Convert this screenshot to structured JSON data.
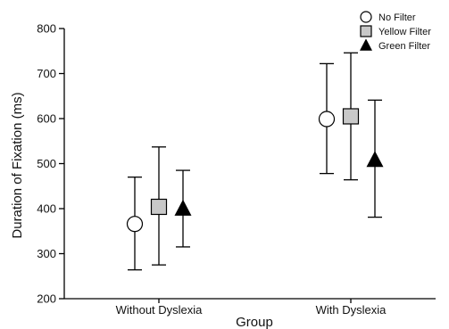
{
  "chart_data": {
    "type": "scatter",
    "xlabel": "Group",
    "ylabel": "Duration of Fixation (ms)",
    "ylim": [
      200,
      800
    ],
    "yticks": [
      200,
      300,
      400,
      500,
      600,
      700,
      800
    ],
    "categories": [
      "Without Dyslexia",
      "With Dyslexia"
    ],
    "grid": false,
    "legend_position": "top-right",
    "series": [
      {
        "name": "No Filter",
        "marker": "circle",
        "fill": "#ffffff",
        "values": [
          366,
          599
        ],
        "error_low": [
          264,
          478
        ],
        "error_high": [
          470,
          722
        ]
      },
      {
        "name": "Yellow Filter",
        "marker": "square",
        "fill": "#c8c8c8",
        "values": [
          404,
          605
        ],
        "error_low": [
          275,
          464
        ],
        "error_high": [
          537,
          746
        ]
      },
      {
        "name": "Green Filter",
        "marker": "triangle",
        "fill": "#000000",
        "values": [
          400,
          508
        ],
        "error_low": [
          315,
          381
        ],
        "error_high": [
          485,
          641
        ]
      }
    ]
  }
}
